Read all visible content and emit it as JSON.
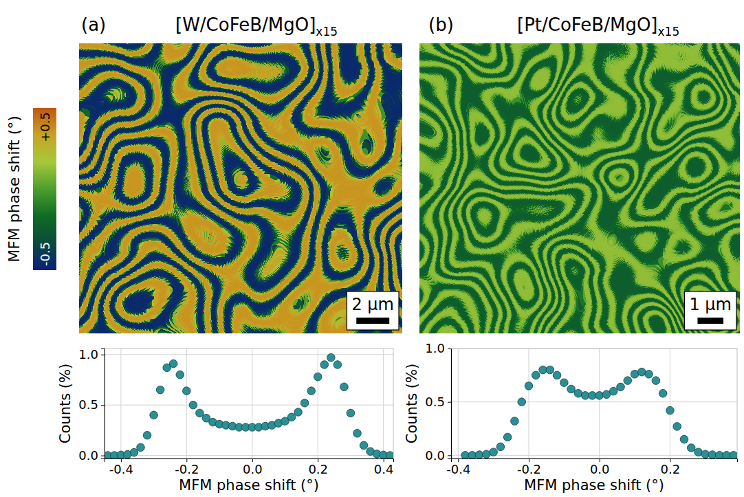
{
  "colorbar": {
    "title": "MFM phase shift (°)",
    "range": [
      -0.5,
      0.5
    ],
    "ticks": [
      {
        "value": 0.5,
        "label": "+0.5"
      },
      {
        "value": -0.5,
        "label": "-0.5"
      }
    ],
    "colors": [
      "#0b1f7d",
      "#0c4a3c",
      "#0f6b24",
      "#4c9e2e",
      "#a6c83a",
      "#c9a224",
      "#c0580f"
    ]
  },
  "chart_data": [
    {
      "type": "image",
      "panel": "(a)",
      "title": "[W/CoFeB/MgO]",
      "title_sub": "x15",
      "xlim": [
        0,
        19.6
      ],
      "scale_bar": {
        "value": 2,
        "label": "2 µm"
      },
      "tick_labels": false
    },
    {
      "type": "image",
      "panel": "(b)",
      "title": "[Pt/CoFeB/MgO]",
      "title_sub": "x15",
      "xlim": [
        0,
        12.4
      ],
      "scale_bar": {
        "value": 1,
        "label": "1 µm"
      },
      "tick_labels": false
    },
    {
      "type": "scatter",
      "marker": "circle",
      "color": "#2a9095",
      "grid": true,
      "xlabel": "MFM phase shift (°)",
      "ylabel": "Counts (%)",
      "xlim": [
        -0.45,
        0.43
      ],
      "ylim": [
        -0.03,
        1.06
      ],
      "xticks": [
        -0.4,
        -0.2,
        {
          "value": 0,
          "label": "0.0"
        },
        0.2,
        0.4
      ],
      "yticks": [
        {
          "value": 0,
          "label": "0.0"
        },
        0.5,
        {
          "value": 1,
          "label": "1.0"
        }
      ],
      "x": [
        -0.44,
        -0.42,
        -0.4,
        -0.38,
        -0.36,
        -0.34,
        -0.32,
        -0.3,
        -0.28,
        -0.26,
        -0.24,
        -0.22,
        -0.2,
        -0.18,
        -0.16,
        -0.14,
        -0.12,
        -0.1,
        -0.08,
        -0.06,
        -0.04,
        -0.02,
        0,
        0.02,
        0.04,
        0.06,
        0.08,
        0.1,
        0.12,
        0.14,
        0.16,
        0.18,
        0.2,
        0.22,
        0.24,
        0.26,
        0.28,
        0.3,
        0.32,
        0.34,
        0.36,
        0.38,
        0.4,
        0.42
      ],
      "values": [
        0,
        0,
        0.005,
        0.01,
        0.03,
        0.08,
        0.2,
        0.4,
        0.65,
        0.87,
        0.91,
        0.8,
        0.64,
        0.5,
        0.42,
        0.37,
        0.33,
        0.31,
        0.3,
        0.29,
        0.28,
        0.28,
        0.28,
        0.28,
        0.29,
        0.3,
        0.32,
        0.34,
        0.38,
        0.43,
        0.52,
        0.64,
        0.78,
        0.9,
        0.97,
        0.9,
        0.68,
        0.42,
        0.22,
        0.1,
        0.04,
        0.015,
        0.005,
        0
      ]
    },
    {
      "type": "scatter",
      "marker": "circle",
      "color": "#2a9095",
      "grid": true,
      "xlabel": "MFM phase shift (°)",
      "ylabel": "Counts (%)",
      "xlim": [
        -0.42,
        0.39
      ],
      "ylim": [
        -0.03,
        1.0
      ],
      "xticks": [
        -0.4,
        -0.2,
        {
          "value": 0,
          "label": "0.0"
        },
        0.2
      ],
      "yticks": [
        {
          "value": 0,
          "label": "0.0"
        },
        0.5,
        {
          "value": 1,
          "label": "1.0"
        }
      ],
      "x": [
        -0.38,
        -0.36,
        -0.34,
        -0.32,
        -0.3,
        -0.28,
        -0.26,
        -0.24,
        -0.22,
        -0.2,
        -0.18,
        -0.16,
        -0.14,
        -0.12,
        -0.1,
        -0.08,
        -0.06,
        -0.04,
        -0.02,
        0,
        0.02,
        0.04,
        0.06,
        0.08,
        0.1,
        0.12,
        0.14,
        0.16,
        0.18,
        0.2,
        0.22,
        0.24,
        0.26,
        0.28,
        0.3,
        0.32,
        0.34,
        0.36,
        0.38
      ],
      "values": [
        0,
        0,
        0.005,
        0.01,
        0.03,
        0.08,
        0.17,
        0.32,
        0.5,
        0.65,
        0.75,
        0.8,
        0.8,
        0.75,
        0.68,
        0.62,
        0.58,
        0.56,
        0.56,
        0.56,
        0.57,
        0.6,
        0.64,
        0.7,
        0.76,
        0.78,
        0.76,
        0.7,
        0.58,
        0.42,
        0.27,
        0.15,
        0.07,
        0.03,
        0.01,
        0.005,
        0,
        0,
        0
      ]
    }
  ]
}
